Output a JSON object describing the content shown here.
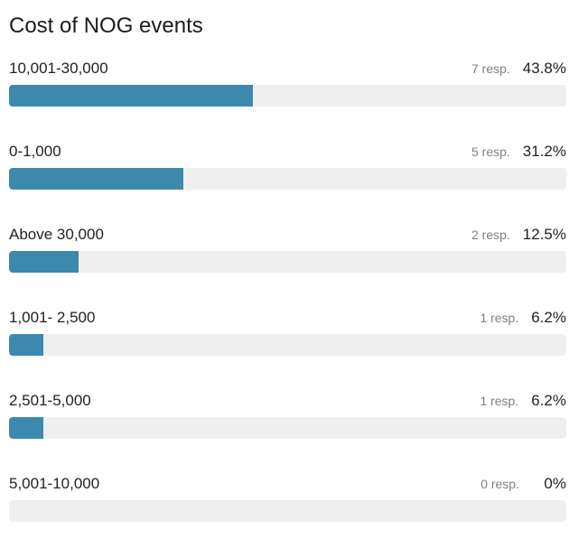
{
  "chart_data": {
    "type": "bar",
    "title": "Cost of NOG events",
    "categories": [
      "10,001-30,000",
      "0-1,000",
      "Above 30,000",
      "1,001- 2,500",
      "2,501-5,000",
      "5,001-10,000"
    ],
    "values": [
      43.8,
      31.2,
      12.5,
      6.2,
      6.2,
      0
    ],
    "responses": [
      7,
      5,
      2,
      1,
      1,
      0
    ],
    "count_labels": [
      "7 resp.",
      "5 resp.",
      "2 resp.",
      "1 resp.",
      "1 resp.",
      "0 resp."
    ],
    "percent_labels": [
      "43.8%",
      "31.2%",
      "12.5%",
      "6.2%",
      "6.2%",
      "0%"
    ],
    "xlim": [
      0,
      100
    ],
    "orientation": "horizontal",
    "grid": false,
    "legend": "none",
    "colors": {
      "bar": "#3c89ad",
      "track": "#efefef"
    }
  }
}
